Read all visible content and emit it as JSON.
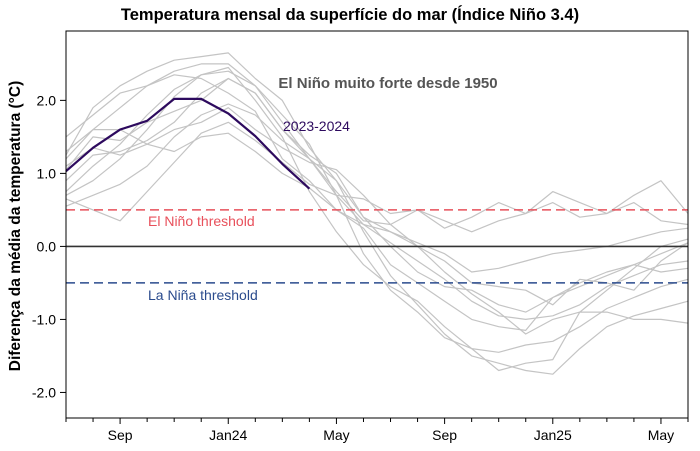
{
  "chart_data": {
    "type": "line",
    "title": "Temperatura mensal da superfície do mar (Índice Niño 3.4)",
    "ylabel": "Diferença da média da temperatura (°C)",
    "xlabel": "",
    "xlim": [
      0,
      23
    ],
    "ylim": [
      -2.35,
      2.95
    ],
    "x_ticks": [
      {
        "x": 2,
        "label": "Sep"
      },
      {
        "x": 6,
        "label": "Jan24"
      },
      {
        "x": 10,
        "label": "May"
      },
      {
        "x": 14,
        "label": "Sep"
      },
      {
        "x": 18,
        "label": "Jan25"
      },
      {
        "x": 22,
        "label": "May"
      }
    ],
    "y_ticks": [
      {
        "y": 2.0,
        "label": "2.0"
      },
      {
        "y": 1.0,
        "label": "1.0"
      },
      {
        "y": 0.0,
        "label": "0.0"
      },
      {
        "y": -1.0,
        "label": "-1.0"
      },
      {
        "y": -2.0,
        "label": "-2.0"
      }
    ],
    "thresholds": [
      {
        "name": "El Niño threshold",
        "y": 0.5,
        "color": "#e8505b"
      },
      {
        "name": "La Niña threshold",
        "y": -0.5,
        "color": "#2a4b8d"
      }
    ],
    "zero_line_color": "#333333",
    "highlight": {
      "name": "2023-2024",
      "color": "#2d0a5e",
      "x": [
        0,
        1,
        2,
        3,
        4,
        5,
        6,
        7,
        8,
        9
      ],
      "values": [
        1.03,
        1.35,
        1.6,
        1.72,
        2.02,
        2.02,
        1.82,
        1.51,
        1.13,
        0.79
      ]
    },
    "background_color": "#c4c4c4",
    "background_series": [
      {
        "name": "strong-el-nino-1",
        "values": [
          0.9,
          1.25,
          1.3,
          1.45,
          1.7,
          2.1,
          2.3,
          2.1,
          1.6,
          1.25,
          1.0,
          0.4,
          0.2,
          0.05,
          -0.1,
          -0.35,
          -0.3,
          -0.2,
          -0.1,
          -0.05,
          0.0,
          0.1,
          0.2,
          0.25
        ]
      },
      {
        "name": "strong-el-nino-2",
        "values": [
          1.25,
          1.9,
          2.2,
          2.4,
          2.55,
          2.6,
          2.65,
          2.3,
          2.0,
          1.35,
          0.9,
          0.2,
          -0.4,
          -0.8,
          -1.2,
          -1.5,
          -1.6,
          -1.7,
          -1.75,
          -1.4,
          -1.1,
          -0.95,
          -0.85,
          -0.75
        ]
      },
      {
        "name": "strong-el-nino-3",
        "values": [
          1.5,
          1.8,
          2.1,
          2.2,
          2.4,
          2.5,
          2.5,
          2.2,
          1.8,
          1.4,
          0.7,
          -0.1,
          -0.6,
          -0.9,
          -1.25,
          -1.4,
          -1.7,
          -1.6,
          -1.55,
          -0.9,
          -0.9,
          -1.0,
          -1.0,
          -1.05
        ]
      },
      {
        "name": "strong-el-nino-4",
        "values": [
          1.3,
          1.6,
          1.9,
          2.2,
          2.35,
          2.3,
          2.1,
          1.85,
          1.2,
          0.9,
          0.5,
          0.25,
          -0.25,
          -0.5,
          -0.75,
          -1.0,
          -1.1,
          -1.15,
          -0.7,
          -0.5,
          -0.35,
          -0.25,
          -0.35,
          -0.3
        ]
      },
      {
        "name": "strong-el-nino-5",
        "values": [
          0.55,
          0.7,
          0.85,
          1.1,
          1.5,
          1.8,
          1.95,
          1.8,
          1.45,
          1.2,
          0.9,
          0.4,
          0.0,
          -0.35,
          -0.55,
          -0.6,
          -0.8,
          -0.9,
          -0.7,
          -0.55,
          -0.4,
          -0.25,
          -0.1,
          0.05
        ]
      },
      {
        "name": "strong-el-nino-6",
        "values": [
          1.05,
          1.5,
          1.45,
          1.7,
          1.85,
          2.0,
          2.3,
          2.1,
          1.6,
          1.2,
          0.75,
          0.35,
          0.3,
          0.0,
          -0.2,
          -0.5,
          -0.55,
          -0.6,
          -0.8,
          -0.45,
          -0.5,
          -0.6,
          -0.2,
          0.05
        ]
      },
      {
        "name": "strong-el-nino-7",
        "values": [
          1.1,
          1.35,
          1.25,
          1.4,
          1.6,
          1.7,
          1.9,
          1.6,
          1.35,
          1.15,
          1.05,
          0.7,
          0.3,
          0.5,
          0.35,
          0.2,
          0.35,
          0.45,
          0.6,
          0.4,
          0.45,
          0.6,
          0.35,
          0.3
        ]
      },
      {
        "name": "strong-el-nino-8",
        "values": [
          0.65,
          0.5,
          0.35,
          0.75,
          1.15,
          1.55,
          1.7,
          1.45,
          1.15,
          0.85,
          0.7,
          0.65,
          0.45,
          0.5,
          0.25,
          0.4,
          0.6,
          0.45,
          0.75,
          0.6,
          0.45,
          0.7,
          0.9,
          0.45
        ]
      },
      {
        "name": "strong-el-nino-9",
        "values": [
          0.7,
          0.9,
          1.2,
          1.6,
          2.05,
          2.35,
          2.45,
          2.0,
          1.5,
          0.75,
          0.2,
          -0.25,
          -0.55,
          -0.75,
          -1.1,
          -1.4,
          -1.45,
          -1.35,
          -1.3,
          -1.1,
          -0.85,
          -0.7,
          -0.55,
          -0.45
        ]
      },
      {
        "name": "strong-el-nino-10",
        "values": [
          1.2,
          1.6,
          1.6,
          1.4,
          1.3,
          1.5,
          1.55,
          1.3,
          1.0,
          0.8,
          0.5,
          0.3,
          0.2,
          0.0,
          -0.35,
          -0.65,
          -0.9,
          -1.2,
          -1.0,
          -0.9,
          -0.6,
          -0.3,
          0.0,
          0.1
        ]
      },
      {
        "name": "strong-el-nino-11",
        "values": [
          0.75,
          1.1,
          1.4,
          1.8,
          2.15,
          2.35,
          2.4,
          2.2,
          1.7,
          1.2,
          0.7,
          0.3,
          0.05,
          -0.2,
          -0.45,
          -0.75,
          -0.95,
          -1.0,
          -0.95,
          -0.8,
          -0.55,
          -0.4,
          -0.25,
          -0.2
        ]
      }
    ],
    "annotations": {
      "header": "El Niño muito forte desde 1950",
      "highlight_label": "2023-2024",
      "el_nino_label": "El Niño threshold",
      "la_nina_label": "La Niña threshold"
    }
  }
}
